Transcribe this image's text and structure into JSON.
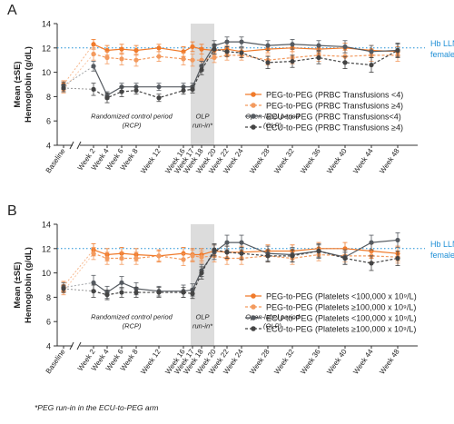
{
  "chart_data": [
    {
      "panel": "A",
      "type": "line",
      "ylabel_line1": "Mean (±SE)",
      "ylabel_line2": "Hemoglobin (g/dL)",
      "ylim": [
        4,
        14
      ],
      "yticks": [
        4,
        6,
        8,
        10,
        12,
        14
      ],
      "categories": [
        "Baseline",
        "Week 2",
        "Week 4",
        "Week 6",
        "Week 8",
        "Week 12",
        "Week 16",
        "Week 17",
        "Week 18",
        "Week 20",
        "Week 22",
        "Week 24",
        "Week 28",
        "Week 32",
        "Week 36",
        "Week 40",
        "Week 44",
        "Week 48"
      ],
      "reference_line": {
        "value": 12,
        "label_line1": "Hb LLN",
        "label_line2": "female",
        "color": "#1f8fd6"
      },
      "period_labels": {
        "rcp_line1": "Randomized control period",
        "rcp_line2": "(RCP)",
        "olp_runin_line1": "OLP",
        "olp_runin_line2": "run-in*",
        "olp_line1": "Open-label period",
        "olp_line2": "(OLP)"
      },
      "series": [
        {
          "name": "PEG-to-PEG (PRBC Transfusions <4)",
          "color": "#f07a2a",
          "dashed": false,
          "values": [
            9.0,
            12.3,
            11.8,
            11.9,
            11.8,
            12.0,
            11.7,
            12.1,
            11.9,
            11.8,
            11.9,
            11.7,
            11.9,
            12.0,
            11.9,
            12.0,
            11.8,
            11.7
          ],
          "err": [
            0.3,
            0.4,
            0.4,
            0.4,
            0.4,
            0.3,
            0.4,
            0.4,
            0.4,
            0.4,
            0.3,
            0.3,
            0.3,
            0.3,
            0.3,
            0.4,
            0.4,
            0.4
          ]
        },
        {
          "name": "PEG-to-PEG (PRBC Transfusions ≥4)",
          "color": "#f39a5e",
          "dashed": true,
          "values": [
            8.6,
            11.5,
            11.2,
            11.1,
            11.0,
            11.3,
            11.1,
            11.0,
            11.0,
            11.2,
            11.4,
            11.4,
            11.0,
            11.2,
            11.4,
            11.3,
            11.4,
            11.4
          ],
          "err": [
            0.3,
            0.5,
            0.5,
            0.5,
            0.5,
            0.4,
            0.5,
            0.5,
            0.5,
            0.4,
            0.4,
            0.4,
            0.4,
            0.5,
            0.5,
            0.5,
            0.5,
            0.5
          ]
        },
        {
          "name": "ECU-to-PEG (PRBC Transfusions<4)",
          "color": "#555a60",
          "dashed": false,
          "values": [
            8.9,
            10.5,
            8.1,
            8.8,
            8.8,
            8.8,
            8.8,
            8.8,
            10.5,
            12.2,
            12.5,
            12.5,
            12.2,
            12.3,
            12.2,
            12.1,
            11.7,
            11.8
          ],
          "err": [
            0.3,
            0.4,
            0.3,
            0.3,
            0.3,
            0.3,
            0.3,
            0.3,
            0.4,
            0.4,
            0.4,
            0.4,
            0.4,
            0.4,
            0.4,
            0.5,
            0.5,
            0.5
          ]
        },
        {
          "name": "ECU-to-PEG (PRBC Transfusions ≥4)",
          "color": "#444444",
          "dashed": true,
          "values": [
            8.7,
            8.6,
            7.9,
            8.4,
            8.5,
            7.9,
            8.5,
            8.6,
            10.2,
            11.9,
            11.7,
            11.6,
            10.8,
            10.9,
            11.2,
            10.8,
            10.6,
            11.8
          ],
          "err": [
            0.3,
            0.5,
            0.4,
            0.4,
            0.3,
            0.3,
            0.3,
            0.3,
            0.4,
            0.4,
            0.4,
            0.4,
            0.5,
            0.5,
            0.5,
            0.5,
            0.6,
            0.6
          ]
        }
      ]
    },
    {
      "panel": "B",
      "type": "line",
      "ylabel_line1": "Mean (±SE)",
      "ylabel_line2": "Hemoglobin (g/dL)",
      "ylim": [
        4,
        14
      ],
      "yticks": [
        4,
        6,
        8,
        10,
        12,
        14
      ],
      "categories": [
        "Baseline",
        "Week 2",
        "Week 4",
        "Week 6",
        "Week 8",
        "Week 12",
        "Week 16",
        "Week 17",
        "Week 18",
        "Week 20",
        "Week 22",
        "Week 24",
        "Week 28",
        "Week 32",
        "Week 36",
        "Week 40",
        "Week 44",
        "Week 48"
      ],
      "reference_line": {
        "value": 12,
        "label_line1": "Hb LLN",
        "label_line2": "female",
        "color": "#1f8fd6"
      },
      "period_labels": {
        "rcp_line1": "Randomized control period",
        "rcp_line2": "(RCP)",
        "olp_runin_line1": "OLP",
        "olp_runin_line2": "run-in*",
        "olp_line1": "Open-label period",
        "olp_line2": "(OLP)"
      },
      "series": [
        {
          "name": "PEG-to-PEG (Platelets <100,000 x 10⁹/L)",
          "color": "#f07a2a",
          "dashed": false,
          "values": [
            8.9,
            11.9,
            11.5,
            11.6,
            11.5,
            11.4,
            11.6,
            11.5,
            11.5,
            11.8,
            11.7,
            11.7,
            11.8,
            11.8,
            12.0,
            12.0,
            11.8,
            11.6
          ],
          "err": [
            0.4,
            0.5,
            0.5,
            0.5,
            0.5,
            0.5,
            0.5,
            0.5,
            0.5,
            0.5,
            0.5,
            0.5,
            0.5,
            0.5,
            0.5,
            0.5,
            0.6,
            0.6
          ]
        },
        {
          "name": "PEG-to-PEG (Platelets ≥100,000 x 10⁹/L)",
          "color": "#f39a5e",
          "dashed": true,
          "values": [
            8.5,
            11.6,
            11.2,
            11.2,
            11.2,
            11.4,
            11.1,
            11.4,
            11.3,
            11.4,
            11.2,
            11.2,
            11.4,
            11.2,
            11.5,
            11.4,
            11.4,
            11.3
          ],
          "err": [
            0.3,
            0.5,
            0.5,
            0.5,
            0.5,
            0.4,
            0.5,
            0.5,
            0.5,
            0.5,
            0.5,
            0.5,
            0.5,
            0.5,
            0.5,
            0.5,
            0.5,
            0.5
          ]
        },
        {
          "name": "ECU-to-PEG (Platelets <100,000 x 10⁹/L)",
          "color": "#555a60",
          "dashed": false,
          "values": [
            8.8,
            9.2,
            8.4,
            9.2,
            8.7,
            8.5,
            8.5,
            8.6,
            10.2,
            11.7,
            12.5,
            12.5,
            11.6,
            11.5,
            11.8,
            11.3,
            12.5,
            12.7
          ],
          "err": [
            0.4,
            0.6,
            0.5,
            0.5,
            0.5,
            0.4,
            0.5,
            0.5,
            0.5,
            0.6,
            0.6,
            0.6,
            0.6,
            0.6,
            0.6,
            0.6,
            0.6,
            0.6
          ]
        },
        {
          "name": "ECU-to-PEG (Platelets ≥100,000 x 10⁹/L)",
          "color": "#444444",
          "dashed": true,
          "values": [
            8.7,
            8.5,
            8.2,
            8.4,
            8.4,
            8.4,
            8.4,
            8.3,
            10.0,
            11.9,
            11.7,
            11.6,
            11.4,
            11.4,
            11.8,
            11.2,
            10.8,
            11.2
          ],
          "err": [
            0.3,
            0.5,
            0.4,
            0.4,
            0.4,
            0.4,
            0.4,
            0.4,
            0.5,
            0.5,
            0.5,
            0.5,
            0.5,
            0.5,
            0.5,
            0.5,
            0.6,
            0.6
          ]
        }
      ]
    }
  ],
  "footnote": "*PEG run-in in the ECU-to-PEG arm"
}
